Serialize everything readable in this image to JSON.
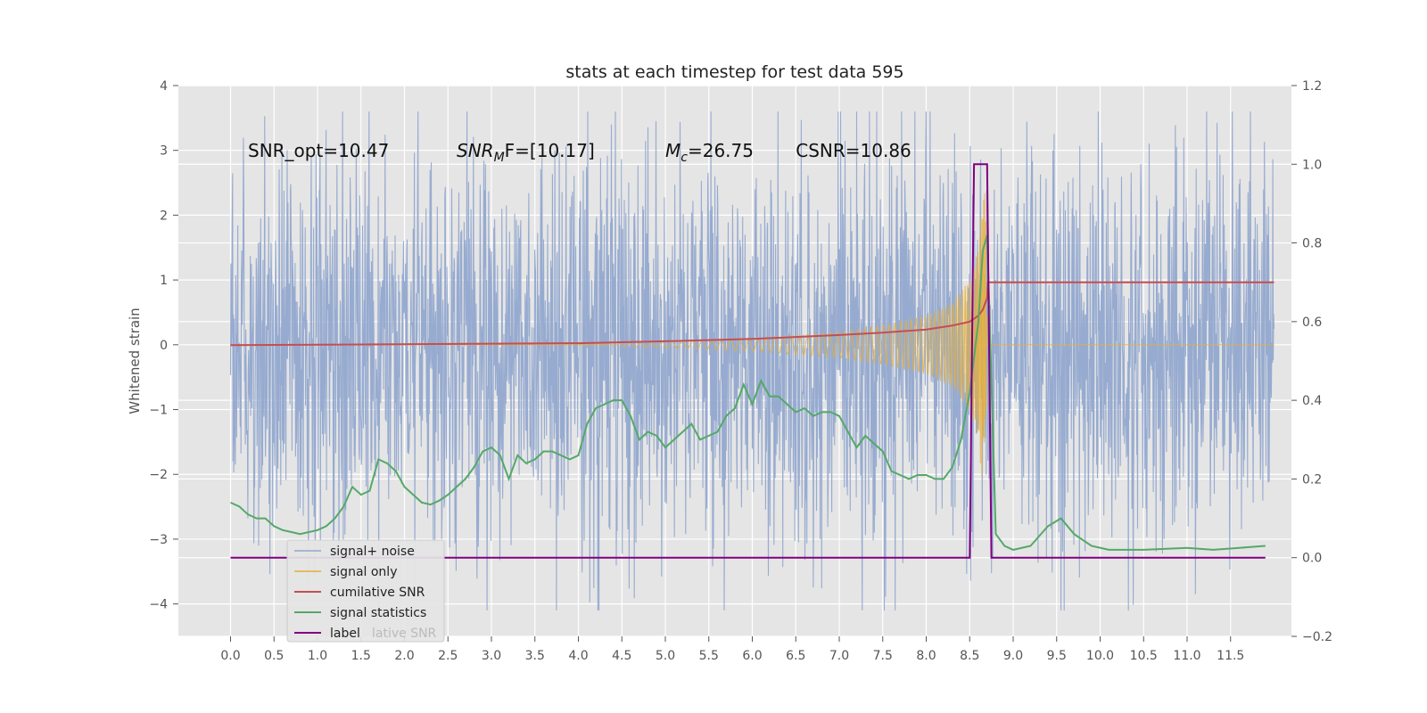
{
  "chart_data": {
    "type": "line",
    "title": "stats at each timestep for test data 595",
    "ylabel": "Whitened strain",
    "ylim": [
      -4.5,
      4
    ],
    "y2lim": [
      -0.2,
      1.2
    ],
    "xlim": [
      -0.6,
      12.2
    ],
    "y_ticks": [
      -4,
      -3,
      -2,
      -1,
      0,
      1,
      2,
      3,
      4
    ],
    "y2_ticks": [
      -0.2,
      0.0,
      0.2,
      0.4,
      0.6,
      0.8,
      1.0,
      1.2
    ],
    "x_ticks": [
      0.0,
      0.5,
      1.0,
      1.5,
      2.0,
      2.5,
      3.0,
      3.5,
      4.0,
      4.5,
      5.0,
      5.5,
      6.0,
      6.5,
      7.0,
      7.5,
      8.0,
      8.5,
      9.0,
      9.5,
      10.0,
      10.5,
      11.0,
      11.5
    ],
    "y_tick_labels": [
      "−4",
      "−3",
      "−2",
      "−1",
      "0",
      "1",
      "2",
      "3",
      "4"
    ],
    "y2_tick_labels": [
      "−0.2",
      "0.0",
      "0.2",
      "0.4",
      "0.6",
      "0.8",
      "1.0",
      "1.2"
    ],
    "x_tick_labels": [
      "0.0",
      "0.5",
      "1.0",
      "1.5",
      "2.0",
      "2.5",
      "3.0",
      "3.5",
      "4.0",
      "4.5",
      "5.0",
      "5.5",
      "6.0",
      "6.5",
      "7.0",
      "7.5",
      "8.0",
      "8.5",
      "9.0",
      "9.5",
      "10.0",
      "10.5",
      "11.0",
      "11.5"
    ],
    "grid": true,
    "legend_position": "lower-left",
    "annotations": [
      {
        "text": "SNR_opt=10.47",
        "x": 0.2,
        "y": 2.9
      },
      {
        "text_main": "SNR",
        "text_sub": "M",
        "text_rest": "F=[10.17]",
        "x": 2.6,
        "y": 2.9
      },
      {
        "text_main": "M",
        "text_sub": "c",
        "text_rest": "=26.75",
        "x": 5.0,
        "y": 2.9
      },
      {
        "text": "CSNR=10.86",
        "x": 6.5,
        "y": 2.9
      }
    ],
    "series": [
      {
        "name": "signal+ noise",
        "axis": "left",
        "color": "#92a8cf",
        "kind": "noise_band",
        "x_range": [
          0.0,
          12.0
        ],
        "typical_amplitude": 1.6,
        "extreme_range": [
          -4.1,
          3.6
        ]
      },
      {
        "name": "signal only",
        "axis": "left",
        "color": "#e5ae38",
        "kind": "chirp",
        "x_range": [
          0.0,
          12.0
        ],
        "envelope": [
          [
            4.0,
            0.0
          ],
          [
            5.0,
            0.05
          ],
          [
            6.0,
            0.1
          ],
          [
            7.0,
            0.2
          ],
          [
            7.5,
            0.3
          ],
          [
            8.0,
            0.45
          ],
          [
            8.3,
            0.65
          ],
          [
            8.5,
            1.0
          ],
          [
            8.6,
            1.5
          ],
          [
            8.65,
            2.2
          ],
          [
            8.68,
            2.4
          ],
          [
            8.7,
            0.0
          ],
          [
            12.0,
            0.0
          ]
        ]
      },
      {
        "name": "cumilative SNR",
        "axis": "right",
        "color": "#c44e52",
        "x": [
          0.0,
          4.0,
          5.0,
          6.0,
          7.0,
          7.5,
          8.0,
          8.3,
          8.5,
          8.6,
          8.65,
          8.7,
          8.71,
          12.0
        ],
        "values": [
          0.54,
          0.545,
          0.55,
          0.556,
          0.566,
          0.572,
          0.58,
          0.59,
          0.6,
          0.615,
          0.63,
          0.66,
          0.7,
          0.7
        ]
      },
      {
        "name": "signal statistics",
        "axis": "right",
        "color": "#55a868",
        "x": [
          0.0,
          0.1,
          0.2,
          0.3,
          0.4,
          0.5,
          0.6,
          0.7,
          0.8,
          0.9,
          1.0,
          1.1,
          1.2,
          1.3,
          1.4,
          1.5,
          1.6,
          1.7,
          1.8,
          1.9,
          2.0,
          2.1,
          2.2,
          2.3,
          2.4,
          2.5,
          2.6,
          2.7,
          2.8,
          2.9,
          3.0,
          3.1,
          3.2,
          3.3,
          3.4,
          3.5,
          3.6,
          3.7,
          3.8,
          3.9,
          4.0,
          4.1,
          4.2,
          4.3,
          4.4,
          4.5,
          4.6,
          4.7,
          4.8,
          4.9,
          5.0,
          5.1,
          5.2,
          5.3,
          5.4,
          5.5,
          5.6,
          5.7,
          5.8,
          5.9,
          6.0,
          6.1,
          6.2,
          6.3,
          6.4,
          6.5,
          6.6,
          6.7,
          6.8,
          6.9,
          7.0,
          7.1,
          7.2,
          7.3,
          7.4,
          7.5,
          7.6,
          7.7,
          7.8,
          7.9,
          8.0,
          8.1,
          8.2,
          8.3,
          8.4,
          8.5,
          8.6,
          8.65,
          8.7,
          8.75,
          8.8,
          8.9,
          9.0,
          9.2,
          9.4,
          9.55,
          9.7,
          9.9,
          10.1,
          10.5,
          11.0,
          11.3,
          11.6,
          11.9
        ],
        "values": [
          0.14,
          0.13,
          0.11,
          0.1,
          0.1,
          0.08,
          0.07,
          0.065,
          0.06,
          0.065,
          0.07,
          0.08,
          0.1,
          0.13,
          0.18,
          0.16,
          0.17,
          0.25,
          0.24,
          0.22,
          0.18,
          0.16,
          0.14,
          0.135,
          0.145,
          0.16,
          0.18,
          0.2,
          0.23,
          0.27,
          0.28,
          0.26,
          0.2,
          0.26,
          0.24,
          0.25,
          0.27,
          0.27,
          0.26,
          0.25,
          0.26,
          0.34,
          0.38,
          0.39,
          0.4,
          0.4,
          0.36,
          0.3,
          0.32,
          0.31,
          0.28,
          0.3,
          0.32,
          0.34,
          0.3,
          0.31,
          0.32,
          0.36,
          0.38,
          0.44,
          0.39,
          0.45,
          0.41,
          0.41,
          0.39,
          0.37,
          0.38,
          0.36,
          0.37,
          0.37,
          0.36,
          0.32,
          0.28,
          0.31,
          0.29,
          0.27,
          0.22,
          0.21,
          0.2,
          0.21,
          0.21,
          0.2,
          0.2,
          0.23,
          0.3,
          0.42,
          0.6,
          0.78,
          0.82,
          0.45,
          0.06,
          0.03,
          0.02,
          0.03,
          0.08,
          0.1,
          0.06,
          0.03,
          0.02,
          0.02,
          0.025,
          0.02,
          0.025,
          0.03
        ]
      },
      {
        "name": "label",
        "axis": "right",
        "color": "#800080",
        "x": [
          0.0,
          8.5,
          8.55,
          8.7,
          8.75,
          11.9
        ],
        "values": [
          0.0,
          0.0,
          1.0,
          1.0,
          0.0,
          0.0
        ]
      }
    ],
    "legend_overlap_text": "lative SNR"
  }
}
